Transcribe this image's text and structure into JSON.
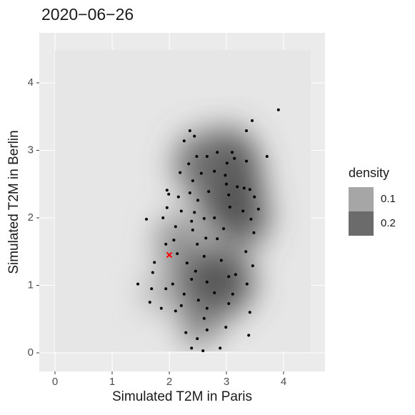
{
  "chart_data": {
    "type": "scatter",
    "title": "2020−06−26",
    "xlabel": "Simulated T2M in Paris",
    "ylabel": "Simulated T2M in Berlin",
    "x": [
      3.91,
      3.45,
      3.35,
      2.36,
      2.44,
      2.26,
      3.71,
      2.84,
      3.1,
      2.66,
      2.48,
      3.14,
      3.01,
      3.35,
      2.34,
      2.79,
      2.19,
      2.56,
      2.98,
      2.41,
      3.0,
      3.19,
      3.31,
      3.41,
      1.96,
      1.99,
      2.36,
      2.69,
      3.04,
      2.16,
      3.49,
      2.5,
      1.96,
      3.06,
      3.56,
      2.21,
      2.44,
      3.29,
      1.6,
      1.89,
      2.79,
      2.39,
      2.61,
      3.43,
      2.11,
      2.41,
      2.95,
      2.64,
      2.84,
      3.48,
      2.08,
      1.94,
      2.49,
      3.34,
      2.14,
      2.61,
      2.91,
      1.74,
      2.31,
      3.46,
      2.46,
      1.71,
      2.39,
      3.04,
      3.16,
      1.45,
      1.69,
      2.06,
      2.66,
      3.36,
      1.94,
      2.79,
      2.26,
      3.11,
      2.51,
      1.66,
      2.21,
      3.04,
      1.86,
      2.11,
      2.66,
      3.41,
      2.61,
      2.99,
      2.66,
      2.29,
      3.39,
      2.49,
      2.89,
      2.39,
      2.59
    ],
    "values": [
      3.6,
      3.44,
      3.29,
      3.29,
      3.21,
      3.14,
      2.91,
      2.97,
      2.97,
      2.91,
      2.91,
      2.88,
      2.81,
      2.84,
      2.8,
      2.69,
      2.67,
      2.66,
      2.63,
      2.55,
      2.5,
      2.46,
      2.44,
      2.42,
      2.41,
      2.35,
      2.37,
      2.39,
      2.34,
      2.31,
      2.31,
      2.26,
      2.15,
      2.16,
      2.13,
      2.1,
      2.08,
      2.1,
      1.98,
      2.0,
      2.0,
      1.95,
      1.99,
      1.98,
      1.87,
      1.82,
      1.84,
      1.7,
      1.69,
      1.78,
      1.67,
      1.61,
      1.61,
      1.5,
      1.47,
      1.43,
      1.37,
      1.34,
      1.33,
      1.29,
      1.21,
      1.19,
      1.09,
      1.13,
      1.16,
      1.02,
      0.95,
      1.02,
      1.05,
      1.02,
      0.95,
      0.89,
      0.87,
      0.87,
      0.78,
      0.75,
      0.7,
      0.73,
      0.66,
      0.62,
      0.66,
      0.6,
      0.51,
      0.38,
      0.34,
      0.3,
      0.26,
      0.21,
      0.07,
      0.07,
      0.03
    ],
    "color": "#000000",
    "highlight": {
      "x": 2.0,
      "y": 1.45,
      "color": "#ff0000"
    },
    "xlim": [
      -0.275,
      4.725
    ],
    "ylim": [
      -0.275,
      4.74
    ],
    "xticks": [
      0,
      1,
      2,
      3,
      4
    ],
    "yticks": [
      0,
      1,
      2,
      3,
      4
    ],
    "grid": true,
    "legend": {
      "title": "density",
      "labels": [
        0.1,
        0.2
      ],
      "colors": [
        "#a6a6a6",
        "#6b6b6b"
      ]
    }
  }
}
